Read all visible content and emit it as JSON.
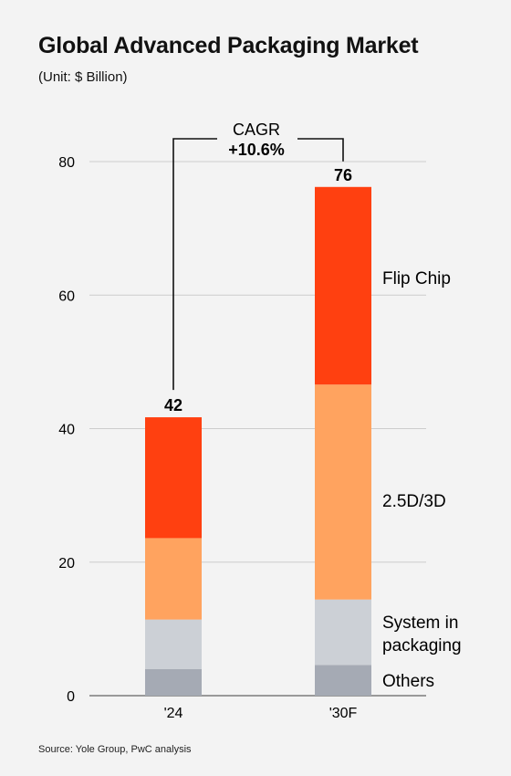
{
  "header": {
    "title": "Global Advanced Packaging Market",
    "subtitle": "(Unit: $ Billion)"
  },
  "footer": {
    "source": "Source: Yole Group, PwC analysis"
  },
  "cagr": {
    "label": "CAGR",
    "value": "+10.6%"
  },
  "colors": {
    "Others": "#a5aab4",
    "System in packaging": "#ccd0d6",
    "2.5D/3D": "#ffa35f",
    "Flip Chip": "#ff4010",
    "gridline": "#cccccc",
    "baseline": "#999999"
  },
  "chart_data": {
    "type": "bar",
    "stacked": true,
    "categories": [
      "'24",
      "'30F"
    ],
    "series": [
      {
        "name": "Others",
        "label_lines": [
          "Others"
        ],
        "values": [
          4,
          4.6
        ]
      },
      {
        "name": "System in packaging",
        "label_lines": [
          "System in",
          "packaging"
        ],
        "values": [
          7.4,
          9.8
        ]
      },
      {
        "name": "2.5D/3D",
        "label_lines": [
          "2.5D/3D"
        ],
        "values": [
          12.2,
          32.2
        ]
      },
      {
        "name": "Flip Chip",
        "label_lines": [
          "Flip Chip"
        ],
        "values": [
          18.1,
          29.6
        ]
      }
    ],
    "totals": [
      "42",
      "76"
    ],
    "ylim": [
      0,
      80
    ],
    "yticks": [
      0,
      20,
      40,
      60,
      80
    ],
    "grid": true,
    "legend": "right (inline labels beside the '30F bar)"
  }
}
